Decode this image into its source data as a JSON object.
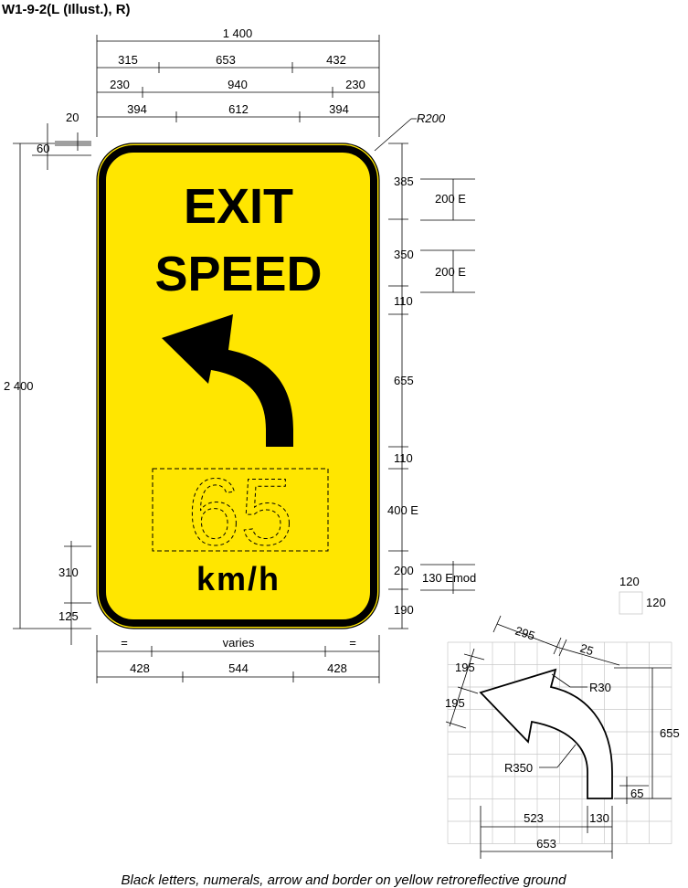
{
  "sheet": {
    "title": "W1-9-2(L (Illust.), R)",
    "caption": "Black letters, numerals, arrow and border on yellow retroreflective ground"
  },
  "sign": {
    "line1": "EXIT",
    "line2": "SPEED",
    "speed_value": "65",
    "unit": "km/h",
    "colors": {
      "ground": "#FFE600",
      "legend": "#000000",
      "border": "#000000"
    }
  },
  "dims_top": {
    "overall": "1 400",
    "row2": [
      "315",
      "653",
      "432"
    ],
    "row3": [
      "230",
      "940",
      "230"
    ],
    "row4": [
      "394",
      "612",
      "394"
    ],
    "border": "20",
    "margin": "60",
    "corner_radius": "R200"
  },
  "dims_left": {
    "height": "2 400",
    "unit_gap": "310",
    "unit_bottom": "125"
  },
  "dims_right": {
    "d1": "385",
    "d2": "350",
    "d3": "110",
    "d4": "655",
    "d5": "110",
    "d6": "400 E",
    "d7": "200",
    "d8": "190",
    "text1": "200 E",
    "text2": "200 E",
    "unit_text": "130 Emod"
  },
  "dims_bottom": {
    "row1": [
      "=",
      "varies",
      "="
    ],
    "row2": [
      "428",
      "544",
      "428"
    ]
  },
  "detail": {
    "grid_cell": "120",
    "grid_cell_v": "120",
    "d295": "295",
    "d25": "25",
    "d195a": "195",
    "d195b": "195",
    "r30": "R30",
    "r350": "R350",
    "d655": "655",
    "d65": "65",
    "d523": "523",
    "d130": "130",
    "d653": "653"
  }
}
